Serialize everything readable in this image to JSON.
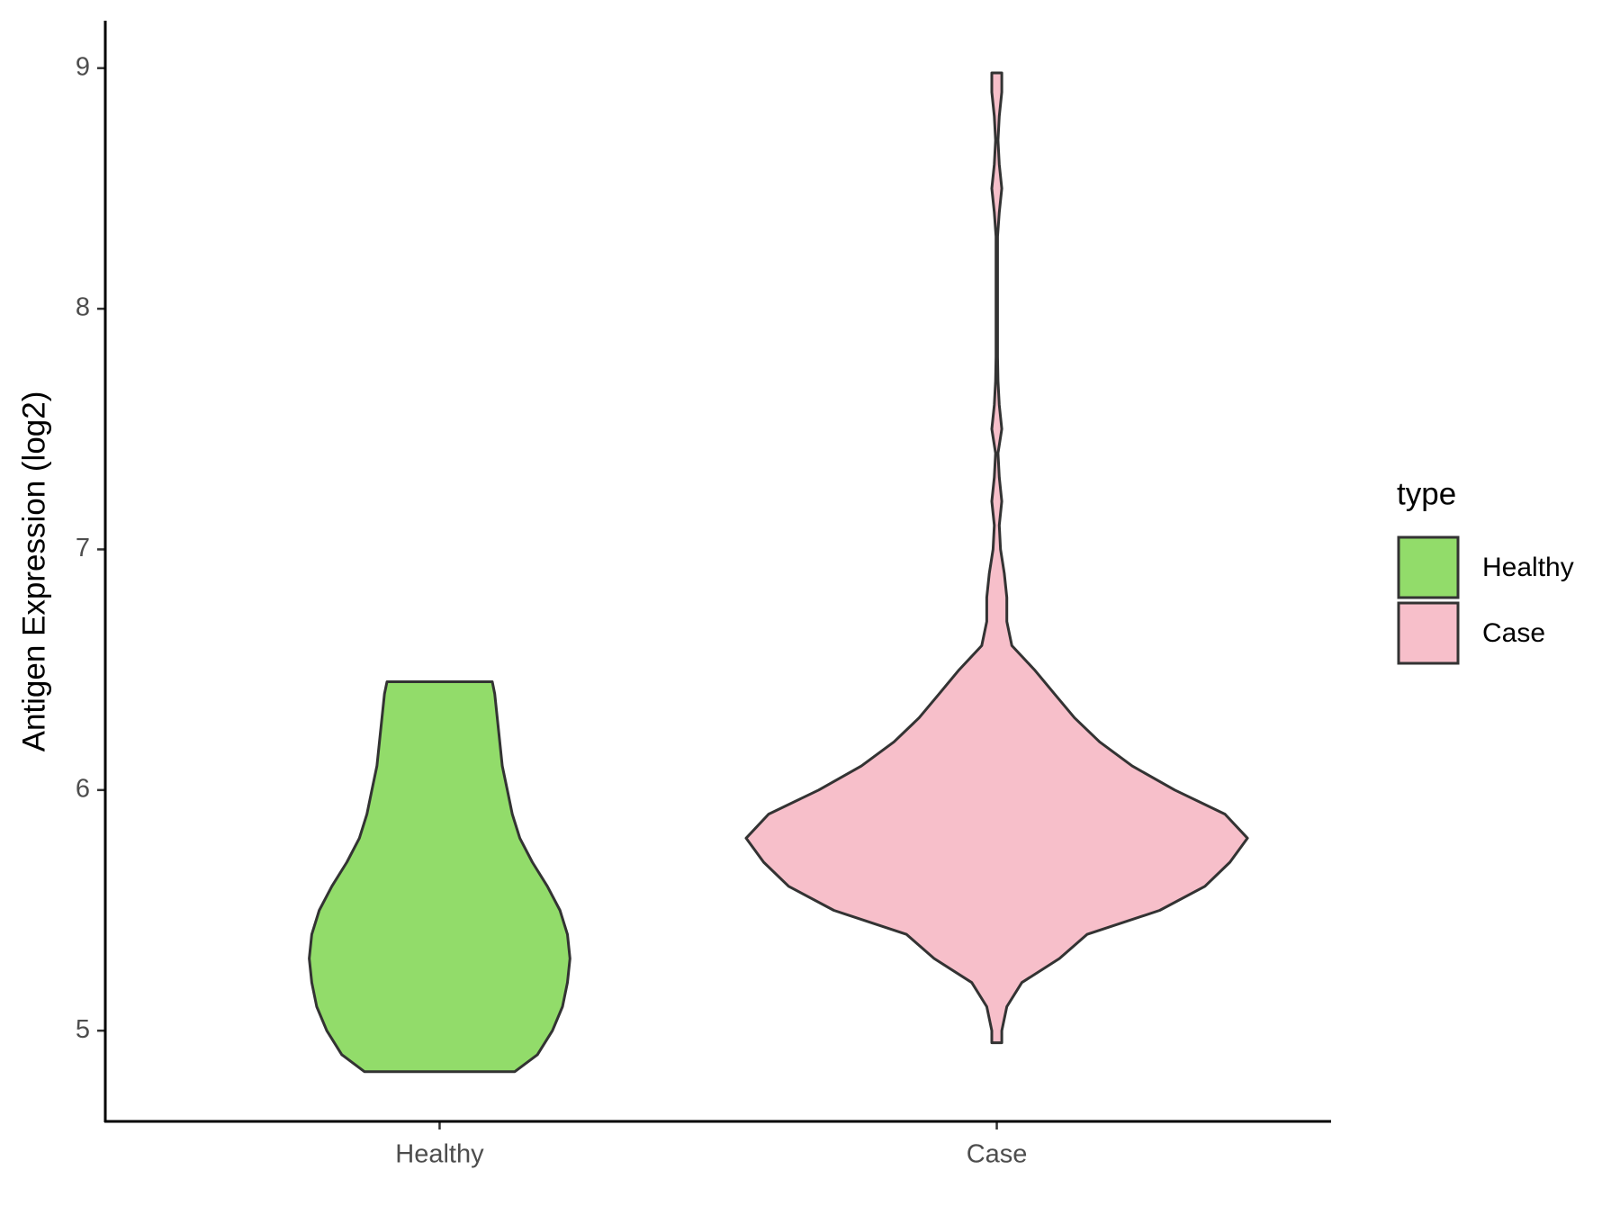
{
  "chart_data": {
    "type": "violin",
    "ylabel": "Antigen Expression (log2)",
    "categories": [
      "Healthy",
      "Case"
    ],
    "legend_title": "type",
    "legend": "right",
    "ylim": [
      4.623,
      9.197
    ],
    "yticks": [
      5,
      6,
      7,
      8,
      9
    ],
    "series": [
      {
        "name": "Healthy",
        "color": "#92dc6a",
        "y": [
          4.83,
          4.9,
          5.0,
          5.1,
          5.2,
          5.3,
          5.4,
          5.5,
          5.6,
          5.7,
          5.8,
          5.9,
          6.0,
          6.1,
          6.2,
          6.3,
          6.4,
          6.45
        ],
        "density": [
          0.3,
          0.39,
          0.45,
          0.49,
          0.51,
          0.52,
          0.51,
          0.48,
          0.43,
          0.37,
          0.32,
          0.29,
          0.27,
          0.25,
          0.24,
          0.23,
          0.22,
          0.21
        ]
      },
      {
        "name": "Case",
        "color": "#f7bfca",
        "y": [
          4.95,
          5.0,
          5.1,
          5.2,
          5.3,
          5.4,
          5.5,
          5.6,
          5.7,
          5.8,
          5.9,
          6.0,
          6.1,
          6.2,
          6.3,
          6.4,
          6.5,
          6.6,
          6.7,
          6.8,
          6.9,
          7.0,
          7.1,
          7.2,
          7.3,
          7.4,
          7.5,
          7.6,
          7.7,
          7.8,
          8.0,
          8.3,
          8.4,
          8.5,
          8.6,
          8.7,
          8.8,
          8.9,
          8.98
        ],
        "density": [
          0.02,
          0.02,
          0.04,
          0.1,
          0.25,
          0.36,
          0.65,
          0.83,
          0.93,
          1.0,
          0.91,
          0.71,
          0.54,
          0.41,
          0.31,
          0.23,
          0.15,
          0.06,
          0.04,
          0.04,
          0.03,
          0.015,
          0.01,
          0.02,
          0.01,
          0.005,
          0.02,
          0.01,
          0.005,
          0.003,
          0.003,
          0.003,
          0.01,
          0.02,
          0.01,
          0.005,
          0.01,
          0.02,
          0.02
        ]
      }
    ]
  }
}
